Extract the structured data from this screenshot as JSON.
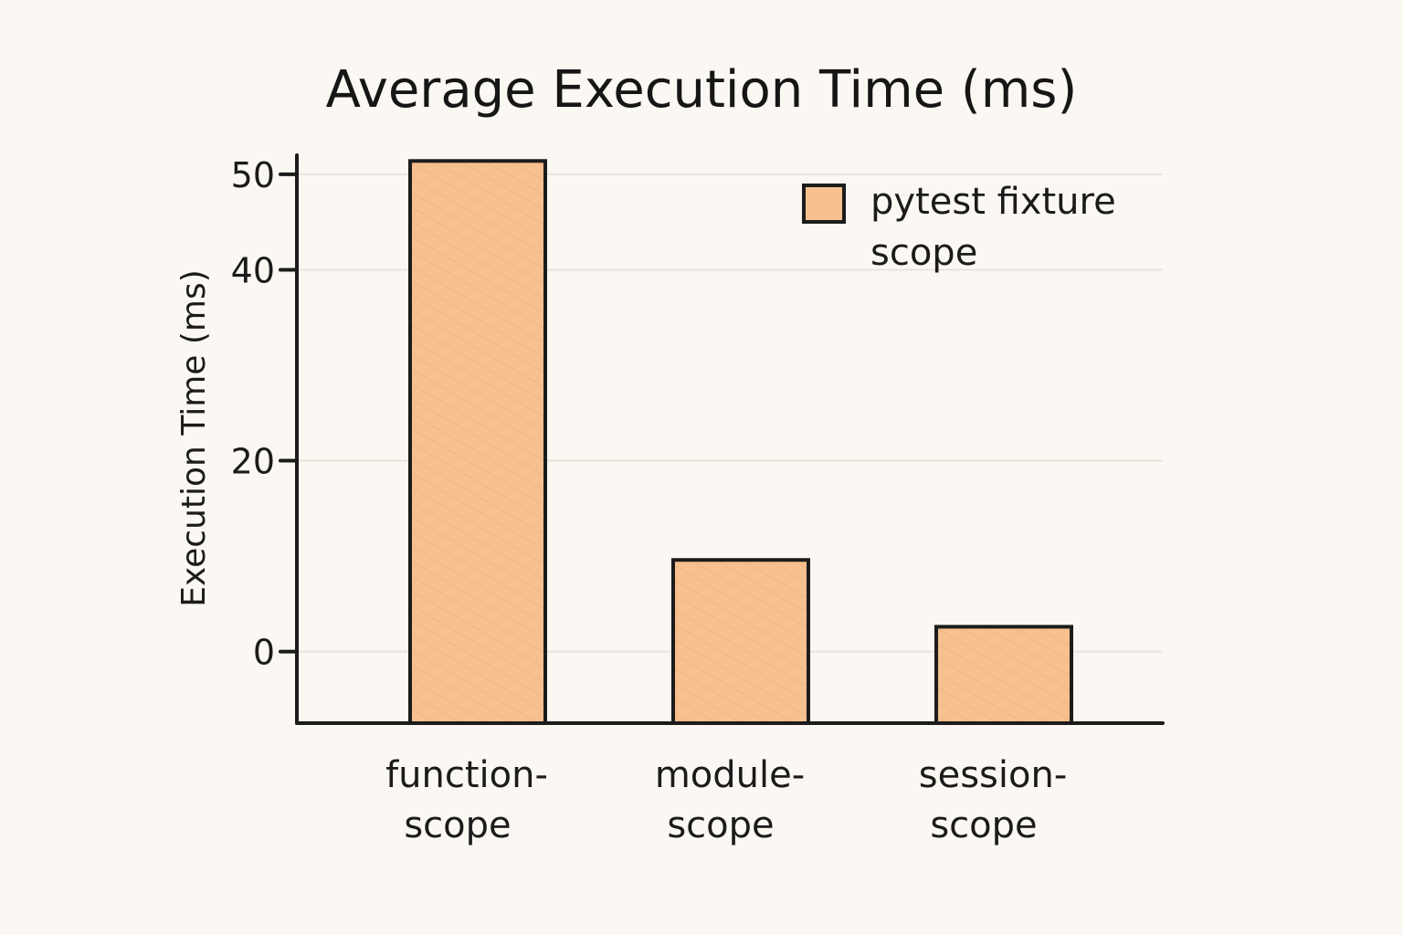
{
  "chart_data": {
    "type": "bar",
    "title": "Average Execution Time (ms)",
    "xlabel": "",
    "ylabel": "Execution Time (ms)",
    "categories": [
      [
        "function-",
        "scope"
      ],
      [
        "module-",
        "scope"
      ],
      [
        "session-",
        "scope"
      ]
    ],
    "series": [
      {
        "name": "pytest fixture scope",
        "values": [
          51.4,
          9.6,
          2.6
        ]
      }
    ],
    "yticks": [
      0,
      20,
      40,
      50
    ],
    "ylim": [
      -7.5,
      52
    ],
    "grid": true,
    "legend_position": "top-right",
    "legend_lines": [
      "pytest fixture",
      "scope"
    ],
    "bar_color": "#f6c08f",
    "bar_stroke": "#1c1c1c",
    "grid_color": "#e7e3dd",
    "axis_color": "#1c1c1c",
    "background": "#fbf8f3"
  }
}
